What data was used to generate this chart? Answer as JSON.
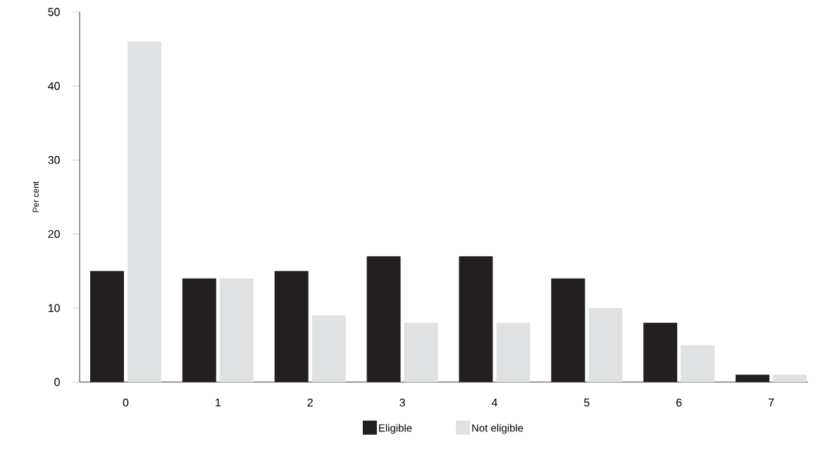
{
  "chart_data": {
    "type": "bar",
    "ylabel": "Per cent",
    "categories": [
      "0",
      "1",
      "2",
      "3",
      "4",
      "5",
      "6",
      "7"
    ],
    "series": [
      {
        "name": "Eligible",
        "color": "#231f20",
        "values": [
          15,
          14,
          15,
          17,
          17,
          14,
          8,
          1
        ]
      },
      {
        "name": "Not eligible",
        "color": "#e0e1e2",
        "values": [
          46,
          14,
          9,
          8,
          8,
          10,
          5,
          1
        ]
      }
    ],
    "ylim": [
      0,
      50
    ],
    "yticks": [
      0,
      10,
      20,
      30,
      40,
      50
    ],
    "legend": "bottom"
  }
}
